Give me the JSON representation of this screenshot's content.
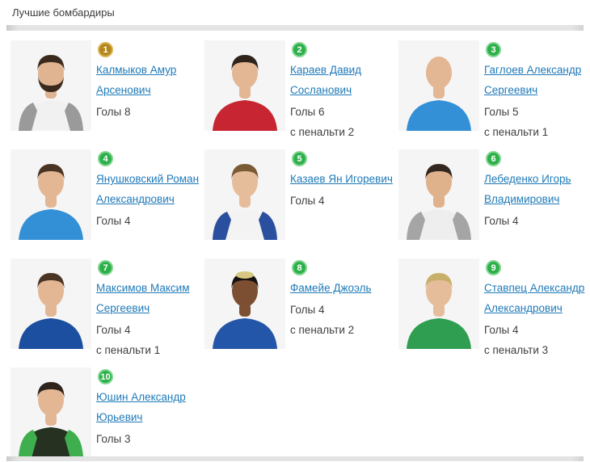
{
  "page": {
    "title": "Лучшие бомбардиры"
  },
  "colors": {
    "link": "#1f7ab8",
    "badge_gold": "#b3871c",
    "badge_gold_ring": "#d8b356",
    "badge_green": "#2db04a",
    "badge_green_ring": "#85d594",
    "stat_text": "#3f3f3f",
    "divider": "#e4e4e4",
    "photo_background": "#f5f5f5"
  },
  "players": [
    {
      "rank": "1",
      "badge_style": "gold",
      "name": "Калмыков Амур Арсенович",
      "goals": "Голы 8",
      "penalty": "",
      "avatar": {
        "skin": "#e0b491",
        "hair": "#3a2a1d",
        "jersey": "#f1f1f1",
        "accent": "#9a9a9a",
        "beard": true,
        "bald": false,
        "hair2": ""
      }
    },
    {
      "rank": "2",
      "badge_style": "green",
      "name": "Караев Давид Сосланович",
      "goals": "Голы 6",
      "penalty": "с пенальти 2",
      "avatar": {
        "skin": "#e3b694",
        "hair": "#2e241c",
        "jersey": "#c62531",
        "accent": "",
        "beard": false,
        "bald": false,
        "hair2": ""
      }
    },
    {
      "rank": "3",
      "badge_style": "green",
      "name": "Гаглоев Александр Сергеевич",
      "goals": "Голы 5",
      "penalty": "с пенальти 1",
      "avatar": {
        "skin": "#e3b694",
        "hair": "",
        "jersey": "#3490d6",
        "accent": "",
        "beard": false,
        "bald": true,
        "hair2": ""
      }
    },
    {
      "rank": "4",
      "badge_style": "green",
      "name": "Янушковский Роман Александрович",
      "goals": "Голы 4",
      "penalty": "",
      "avatar": {
        "skin": "#e3b694",
        "hair": "#4a3423",
        "jersey": "#3490d6",
        "accent": "",
        "beard": false,
        "bald": false,
        "hair2": ""
      }
    },
    {
      "rank": "5",
      "badge_style": "green",
      "name": "Казаев Ян Игоревич",
      "goals": "Голы 4",
      "penalty": "",
      "avatar": {
        "skin": "#e6bd9a",
        "hair": "#7a5b36",
        "jersey": "#f3f3f3",
        "accent": "#2a4f9e",
        "beard": false,
        "bald": false,
        "hair2": ""
      }
    },
    {
      "rank": "6",
      "badge_style": "green",
      "name": "Лебеденко Игорь Владимирович",
      "goals": "Голы 4",
      "penalty": "",
      "avatar": {
        "skin": "#e0b28c",
        "hair": "#33281f",
        "jersey": "#eeeeee",
        "accent": "#a5a5a5",
        "beard": false,
        "bald": false,
        "hair2": ""
      }
    },
    {
      "rank": "7",
      "badge_style": "green",
      "name": "Максимов Максим Сергеевич",
      "goals": "Голы 4",
      "penalty": "с пенальти 1",
      "avatar": {
        "skin": "#e3b694",
        "hair": "#4a3423",
        "jersey": "#1c4fa0",
        "accent": "",
        "beard": false,
        "bald": false,
        "hair2": ""
      }
    },
    {
      "rank": "8",
      "badge_style": "green",
      "name": "Фамейе Джоэль",
      "goals": "Голы 4",
      "penalty": "с пенальти 2",
      "avatar": {
        "skin": "#7c4f33",
        "hair": "#161310",
        "jersey": "#2356a8",
        "accent": "",
        "beard": false,
        "bald": false,
        "hair2": "#d8c87f"
      }
    },
    {
      "rank": "9",
      "badge_style": "green",
      "name": "Ставпец Александр Александрович",
      "goals": "Голы 4",
      "penalty": "с пенальти 3",
      "avatar": {
        "skin": "#e6bd9a",
        "hair": "#c9b06a",
        "jersey": "#2f9e51",
        "accent": "",
        "beard": false,
        "bald": false,
        "hair2": ""
      }
    },
    {
      "rank": "10",
      "badge_style": "green",
      "name": "Юшин Александр Юрьевич",
      "goals": "Голы 3",
      "penalty": "",
      "avatar": {
        "skin": "#e3b694",
        "hair": "#2e241c",
        "jersey": "#263122",
        "accent": "#3fae4e",
        "beard": false,
        "bald": false,
        "hair2": ""
      }
    }
  ]
}
